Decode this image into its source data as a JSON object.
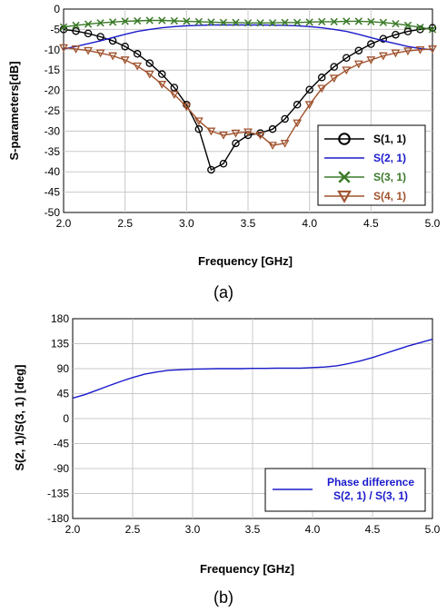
{
  "chart_data": [
    {
      "type": "line",
      "xlabel": "Frequency [GHz]",
      "ylabel": "S-parameters[dB]",
      "caption": "(a)",
      "xlim": [
        2.0,
        5.0
      ],
      "ylim": [
        -50,
        0
      ],
      "xticks": [
        "2.0",
        "2.5",
        "3.0",
        "3.5",
        "4.0",
        "4.5",
        "5.0"
      ],
      "yticks": [
        "0",
        "-5",
        "-10",
        "-15",
        "-20",
        "-25",
        "-30",
        "-35",
        "-40",
        "-45",
        "-50"
      ],
      "grid": true,
      "legend_position": "lower-right",
      "x": [
        2.0,
        2.1,
        2.2,
        2.3,
        2.4,
        2.5,
        2.6,
        2.7,
        2.8,
        2.9,
        3.0,
        3.1,
        3.2,
        3.3,
        3.4,
        3.5,
        3.6,
        3.7,
        3.8,
        3.9,
        4.0,
        4.1,
        4.2,
        4.3,
        4.4,
        4.5,
        4.6,
        4.7,
        4.8,
        4.9,
        5.0
      ],
      "series": [
        {
          "name": "S(1, 1)",
          "color": "#000000",
          "marker": "circle",
          "values": [
            -5.0,
            -5.4,
            -6.0,
            -6.8,
            -7.8,
            -9.2,
            -11.0,
            -13.3,
            -16.0,
            -19.3,
            -23.5,
            -29.5,
            -39.5,
            -38.0,
            -33.0,
            -31.0,
            -30.5,
            -29.5,
            -27.0,
            -23.5,
            -19.8,
            -16.8,
            -14.2,
            -12.0,
            -10.2,
            -8.6,
            -7.3,
            -6.3,
            -5.5,
            -5.0,
            -4.6
          ]
        },
        {
          "name": "S(2, 1)",
          "color": "#1a1acc",
          "marker": "none",
          "values": [
            -9.8,
            -9.2,
            -8.5,
            -7.8,
            -7.0,
            -6.2,
            -5.5,
            -5.0,
            -4.6,
            -4.3,
            -4.1,
            -4.0,
            -3.9,
            -3.9,
            -3.9,
            -3.9,
            -3.9,
            -3.95,
            -4.0,
            -4.1,
            -4.3,
            -4.6,
            -5.0,
            -5.5,
            -6.2,
            -7.0,
            -7.8,
            -8.5,
            -9.2,
            -9.7,
            -10.0
          ]
        },
        {
          "name": "S(3, 1)",
          "color": "#3a7a28",
          "marker": "x",
          "values": [
            -4.4,
            -4.0,
            -3.7,
            -3.4,
            -3.2,
            -3.0,
            -2.9,
            -2.8,
            -2.8,
            -2.9,
            -3.0,
            -3.1,
            -3.2,
            -3.3,
            -3.3,
            -3.4,
            -3.4,
            -3.4,
            -3.3,
            -3.3,
            -3.2,
            -3.1,
            -3.1,
            -3.0,
            -3.0,
            -3.1,
            -3.3,
            -3.6,
            -4.0,
            -4.5,
            -5.0
          ]
        },
        {
          "name": "S(4, 1)",
          "color": "#a0522d",
          "marker": "triangle-down",
          "values": [
            -9.5,
            -9.8,
            -10.2,
            -10.8,
            -11.5,
            -12.5,
            -14.0,
            -16.0,
            -18.5,
            -21.0,
            -24.0,
            -27.5,
            -30.0,
            -31.0,
            -30.5,
            -30.2,
            -31.0,
            -33.5,
            -33.0,
            -28.0,
            -23.5,
            -19.5,
            -17.0,
            -15.0,
            -13.5,
            -12.5,
            -11.5,
            -10.8,
            -10.3,
            -10.0,
            -9.8
          ]
        }
      ]
    },
    {
      "type": "line",
      "xlabel": "Frequency [GHz]",
      "ylabel": "S(2, 1)/S(3, 1) [deg]",
      "caption": "(b)",
      "xlim": [
        2.0,
        5.0
      ],
      "ylim": [
        -180,
        180
      ],
      "xticks": [
        "2.0",
        "2.5",
        "3.0",
        "3.5",
        "4.0",
        "4.5",
        "5.0"
      ],
      "yticks": [
        "180",
        "135",
        "90",
        "45",
        "0",
        "-45",
        "-90",
        "-135",
        "-180"
      ],
      "grid": true,
      "legend_position": "lower-right",
      "x": [
        2.0,
        2.1,
        2.2,
        2.3,
        2.4,
        2.5,
        2.6,
        2.7,
        2.8,
        2.9,
        3.0,
        3.1,
        3.2,
        3.3,
        3.4,
        3.5,
        3.6,
        3.7,
        3.8,
        3.9,
        4.0,
        4.1,
        4.2,
        4.3,
        4.4,
        4.5,
        4.6,
        4.7,
        4.8,
        4.9,
        5.0
      ],
      "series": [
        {
          "name": "Phase difference\nS(2, 1) / S(3, 1)",
          "color": "#1a1acc",
          "marker": "none",
          "values": [
            37,
            43,
            51,
            59,
            67,
            74,
            80,
            84,
            87,
            88,
            89,
            89.5,
            90,
            90,
            90,
            90.5,
            90.5,
            91,
            91,
            91,
            92,
            93,
            95,
            99,
            104,
            110,
            117,
            124,
            131,
            137,
            143
          ]
        }
      ]
    }
  ]
}
